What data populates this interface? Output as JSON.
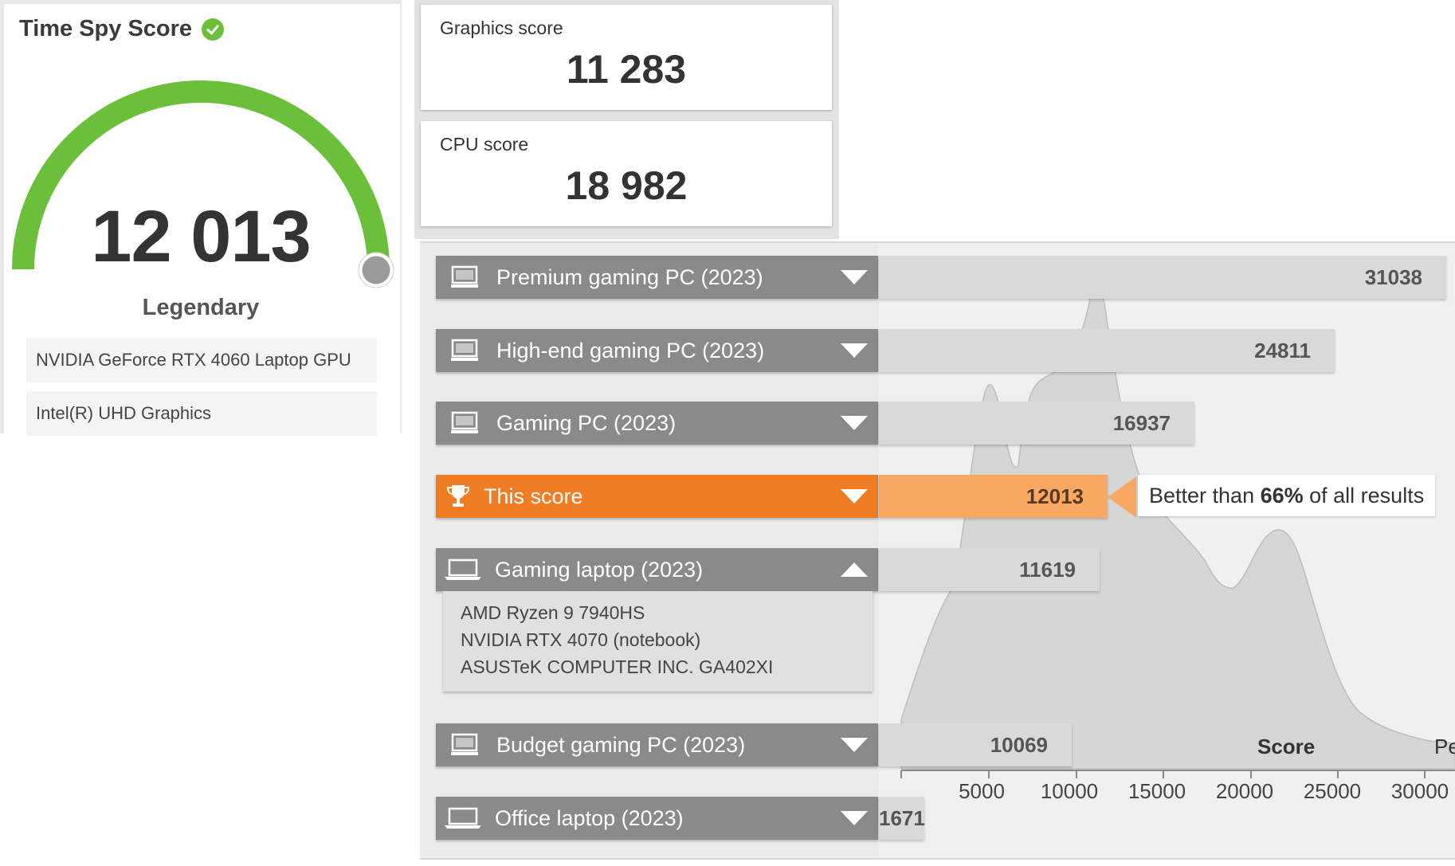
{
  "score_card": {
    "title": "Time Spy Score",
    "score": "12 013",
    "rank": "Legendary",
    "gpus": [
      "NVIDIA GeForce RTX 4060 Laptop GPU",
      "Intel(R) UHD Graphics"
    ],
    "gauge_color": "#6cbf3a"
  },
  "subscores": [
    {
      "label": "Graphics score",
      "value": "11 283"
    },
    {
      "label": "CPU score",
      "value": "18 982"
    }
  ],
  "comparison": {
    "rows": [
      {
        "label": "Premium gaming PC (2023)",
        "value": "31038",
        "icon": "desktop-icon",
        "expanded": false
      },
      {
        "label": "High-end gaming PC (2023)",
        "value": "24811",
        "icon": "desktop-icon",
        "expanded": false
      },
      {
        "label": "Gaming PC (2023)",
        "value": "16937",
        "icon": "desktop-icon",
        "expanded": false
      },
      {
        "label": "This score",
        "value": "12013",
        "icon": "trophy-icon",
        "expanded": false,
        "highlight": true
      },
      {
        "label": "Gaming laptop (2023)",
        "value": "11619",
        "icon": "laptop-icon",
        "expanded": true
      },
      {
        "label": "Budget gaming PC (2023)",
        "value": "10069",
        "icon": "desktop-icon",
        "expanded": false
      },
      {
        "label": "Office laptop (2023)",
        "value": "1671",
        "icon": "laptop-icon",
        "expanded": false
      }
    ],
    "expanded_details": [
      "AMD Ryzen 9 7940HS",
      "NVIDIA RTX 4070 (notebook)",
      "ASUSTeK COMPUTER INC. GA402XI"
    ],
    "tooltip": {
      "prefix": "Better than ",
      "percent": "66%",
      "suffix": " of all results"
    },
    "highlight_color": "#f07c23"
  },
  "distribution": {
    "x_title": "Score",
    "x_title_extra": "Pe",
    "ticks": [
      "5000",
      "10000",
      "15000",
      "20000",
      "25000",
      "30000"
    ]
  }
}
